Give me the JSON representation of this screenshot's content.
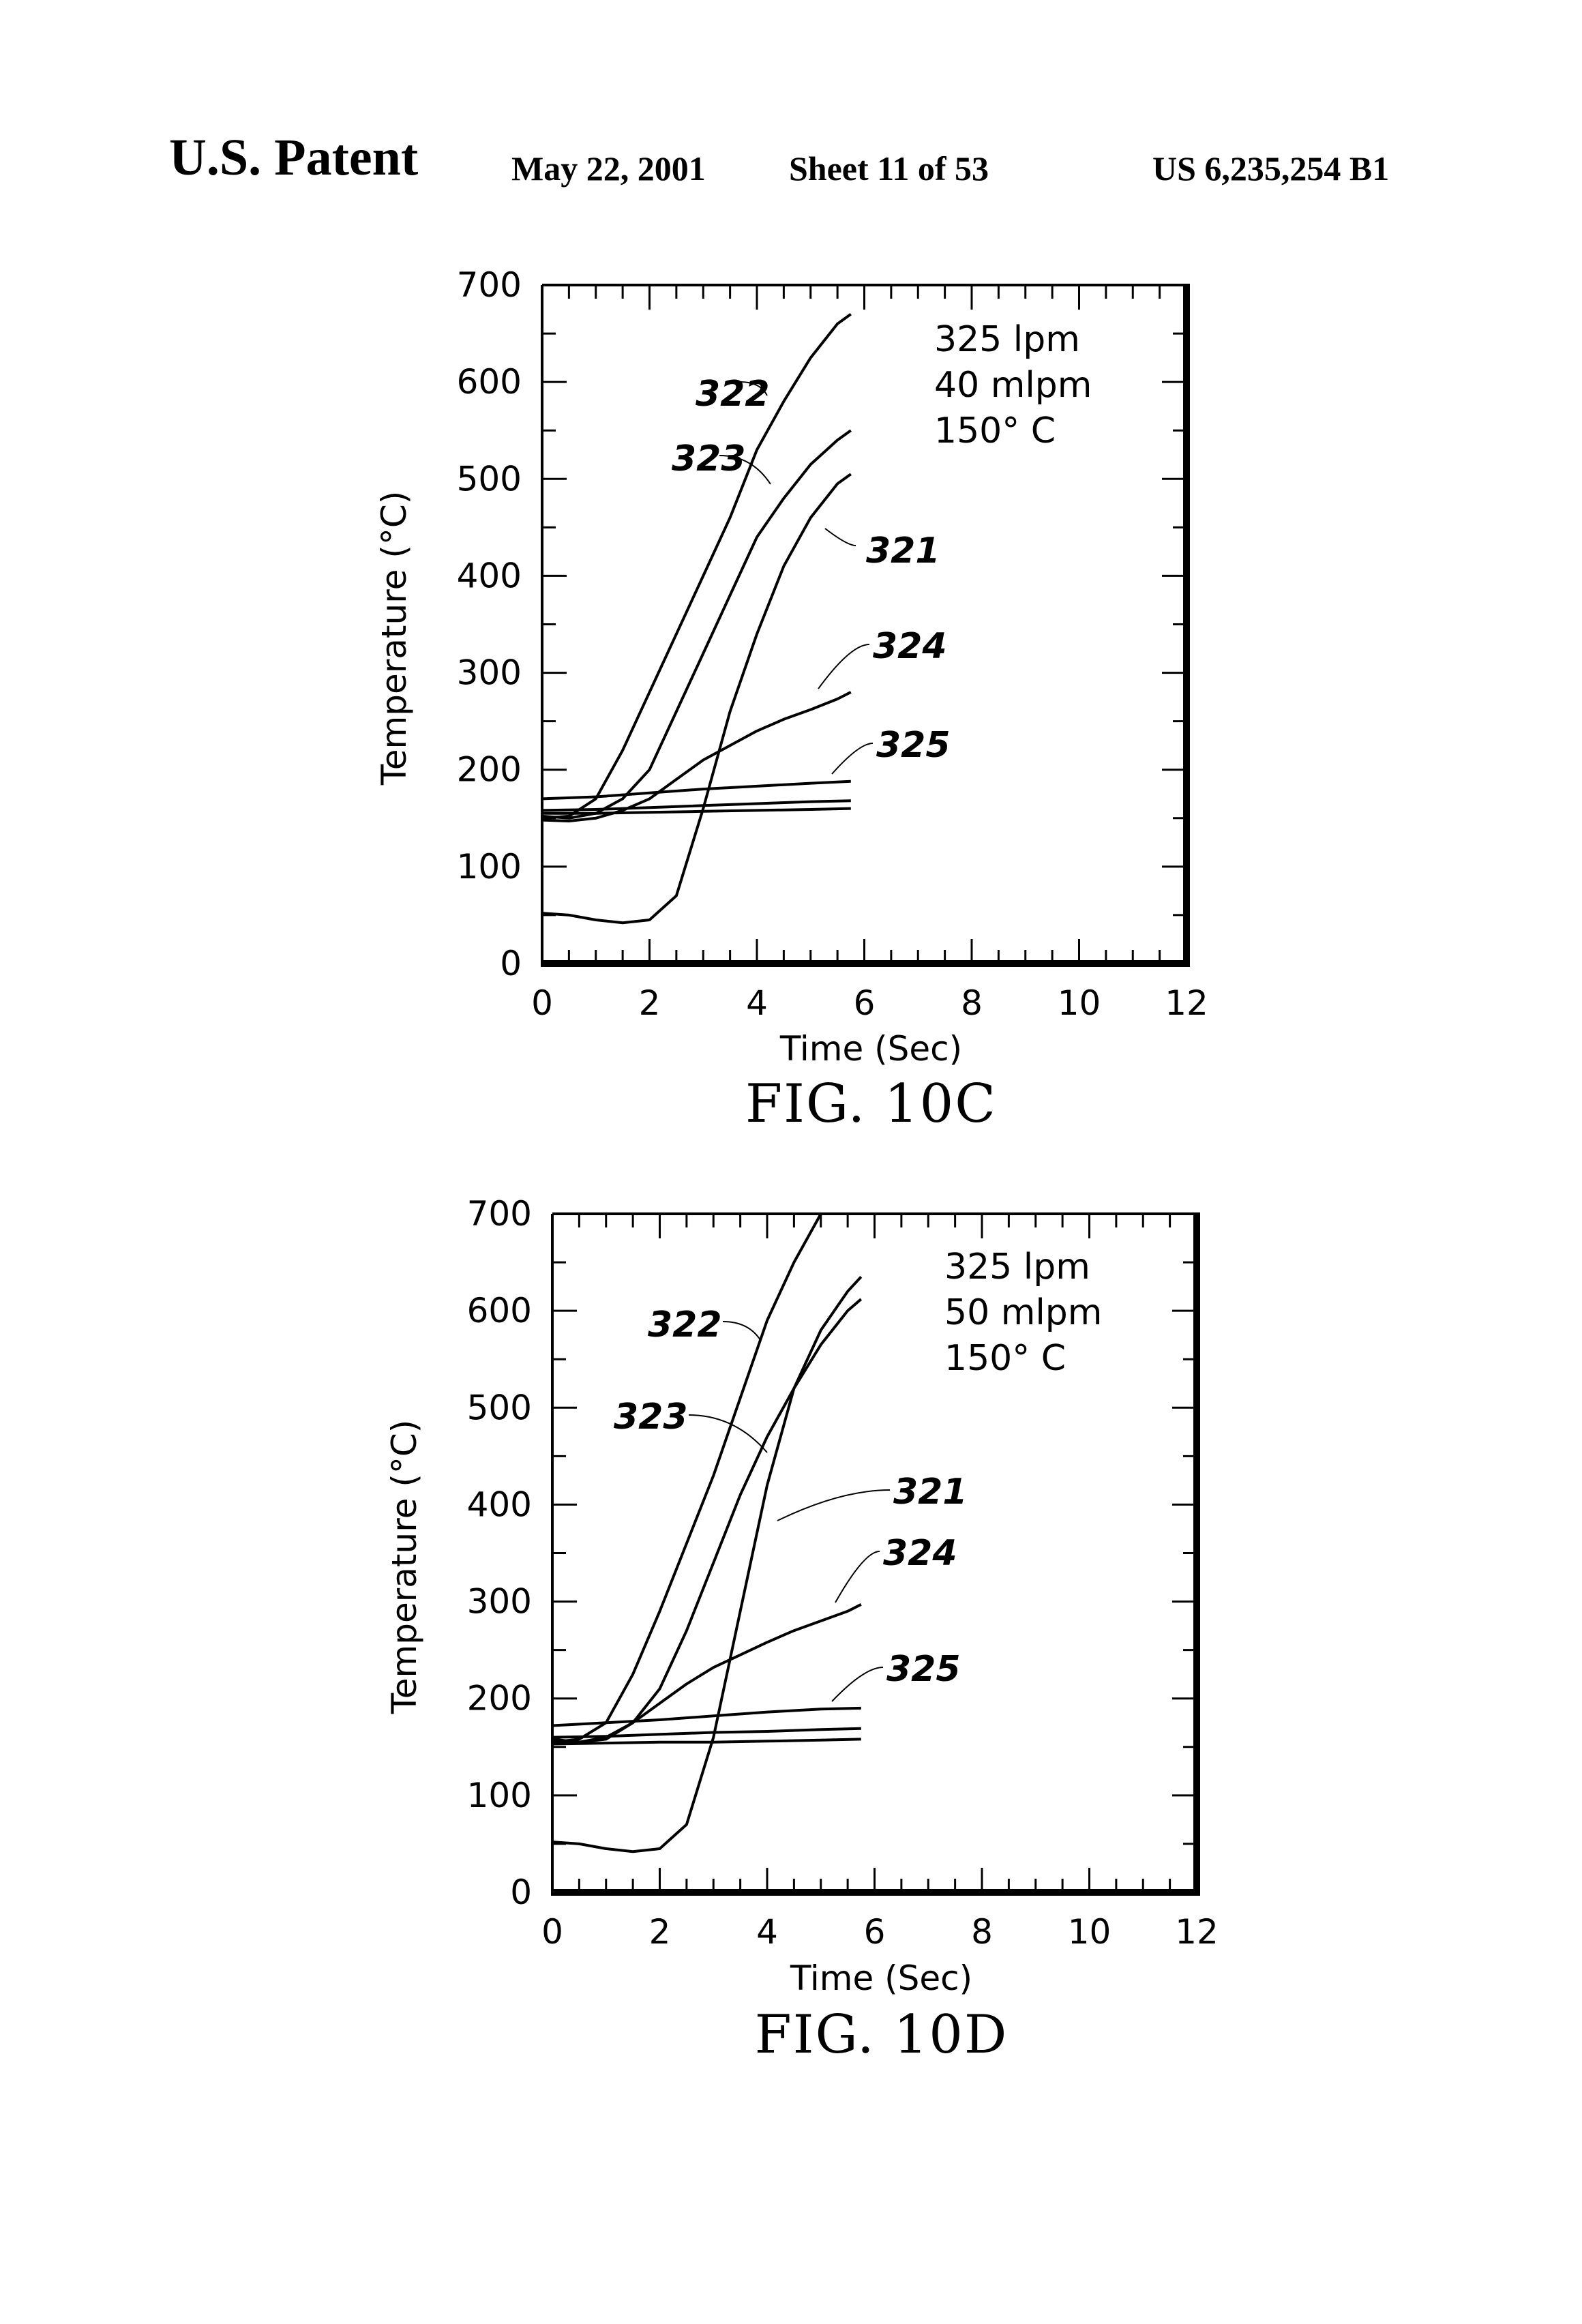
{
  "header": {
    "patent_label": "U.S. Patent",
    "date": "May 22, 2001",
    "sheet": "Sheet 11 of 53",
    "patent_number": "US 6,235,254 B1"
  },
  "chart_data": [
    {
      "type": "line",
      "figure_label": "FIG. 10C",
      "xlabel": "Time (Sec)",
      "ylabel": "Temperature (°C)",
      "xlim": [
        0,
        12
      ],
      "ylim": [
        0,
        700
      ],
      "x_ticks": [
        "0",
        "2",
        "4",
        "6",
        "8",
        "10",
        "12"
      ],
      "y_ticks": [
        "0",
        "100",
        "200",
        "300",
        "400",
        "500",
        "600",
        "700"
      ],
      "conditions": [
        "325 lpm",
        "40 mlpm",
        "150° C"
      ],
      "series": [
        {
          "name": "321",
          "x": [
            0,
            0.5,
            1.0,
            1.5,
            2.0,
            2.5,
            3.0,
            3.5,
            4.0,
            4.5,
            5.0,
            5.5,
            5.75
          ],
          "y": [
            52,
            50,
            45,
            42,
            45,
            70,
            160,
            260,
            340,
            410,
            460,
            495,
            505
          ]
        },
        {
          "name": "322",
          "x": [
            0,
            0.5,
            1.0,
            1.5,
            2.0,
            2.5,
            3.0,
            3.5,
            4.0,
            4.5,
            5.0,
            5.5,
            5.75
          ],
          "y": [
            150,
            152,
            170,
            220,
            280,
            340,
            400,
            460,
            530,
            580,
            625,
            660,
            670
          ]
        },
        {
          "name": "323",
          "x": [
            0,
            0.5,
            1.0,
            1.5,
            2.0,
            2.5,
            3.0,
            3.5,
            4.0,
            4.5,
            5.0,
            5.5,
            5.75
          ],
          "y": [
            152,
            150,
            155,
            170,
            200,
            260,
            320,
            380,
            440,
            480,
            515,
            540,
            550
          ]
        },
        {
          "name": "324",
          "x": [
            0,
            0.5,
            1.0,
            1.5,
            2.0,
            2.5,
            3.0,
            3.5,
            4.0,
            4.5,
            5.0,
            5.5,
            5.75
          ],
          "y": [
            148,
            147,
            150,
            158,
            170,
            190,
            210,
            225,
            240,
            252,
            262,
            273,
            280
          ]
        },
        {
          "name": "325",
          "x": [
            0,
            1,
            2,
            3,
            4,
            5,
            5.75
          ],
          "y": [
            170,
            172,
            176,
            180,
            183,
            186,
            188
          ]
        },
        {
          "name": "",
          "x": [
            0,
            1,
            2,
            3,
            4,
            5,
            5.75
          ],
          "y": [
            158,
            159,
            161,
            163,
            165,
            167,
            168
          ]
        },
        {
          "name": "",
          "x": [
            0,
            1,
            2,
            3,
            4,
            5,
            5.75
          ],
          "y": [
            155,
            155,
            156,
            157,
            158,
            159,
            160
          ]
        }
      ]
    },
    {
      "type": "line",
      "figure_label": "FIG. 10D",
      "xlabel": "Time (Sec)",
      "ylabel": "Temperature (°C)",
      "xlim": [
        0,
        12
      ],
      "ylim": [
        0,
        700
      ],
      "x_ticks": [
        "0",
        "2",
        "4",
        "6",
        "8",
        "10",
        "12"
      ],
      "y_ticks": [
        "0",
        "100",
        "200",
        "300",
        "400",
        "500",
        "600",
        "700"
      ],
      "conditions": [
        "325 lpm",
        "50 mlpm",
        "150° C"
      ],
      "series": [
        {
          "name": "321",
          "x": [
            0,
            0.5,
            1.0,
            1.5,
            2.0,
            2.5,
            3.0,
            3.5,
            4.0,
            4.5,
            5.0,
            5.5,
            5.75
          ],
          "y": [
            52,
            50,
            45,
            42,
            45,
            70,
            160,
            290,
            420,
            520,
            580,
            620,
            635
          ]
        },
        {
          "name": "322",
          "x": [
            0,
            0.5,
            1.0,
            1.5,
            2.0,
            2.5,
            3.0,
            3.5,
            4.0,
            4.5,
            5.0
          ],
          "y": [
            155,
            158,
            175,
            225,
            290,
            360,
            430,
            510,
            590,
            650,
            700
          ]
        },
        {
          "name": "323",
          "x": [
            0,
            0.5,
            1.0,
            1.5,
            2.0,
            2.5,
            3.0,
            3.5,
            4.0,
            4.5,
            5.0,
            5.5,
            5.75
          ],
          "y": [
            158,
            155,
            158,
            175,
            210,
            270,
            340,
            410,
            470,
            520,
            565,
            600,
            612
          ]
        },
        {
          "name": "324",
          "x": [
            0,
            0.5,
            1.0,
            1.5,
            2.0,
            2.5,
            3.0,
            3.5,
            4.0,
            4.5,
            5.0,
            5.5,
            5.75
          ],
          "y": [
            155,
            155,
            160,
            175,
            195,
            215,
            232,
            245,
            258,
            270,
            280,
            290,
            297
          ]
        },
        {
          "name": "325",
          "x": [
            0,
            1,
            2,
            3,
            4,
            5,
            5.75
          ],
          "y": [
            172,
            175,
            178,
            182,
            186,
            189,
            190
          ]
        },
        {
          "name": "",
          "x": [
            0,
            1,
            2,
            3,
            4,
            5,
            5.75
          ],
          "y": [
            160,
            161,
            163,
            165,
            166,
            168,
            169
          ]
        },
        {
          "name": "",
          "x": [
            0,
            1,
            2,
            3,
            4,
            5,
            5.75
          ],
          "y": [
            153,
            154,
            155,
            155,
            156,
            157,
            158
          ]
        }
      ]
    }
  ]
}
